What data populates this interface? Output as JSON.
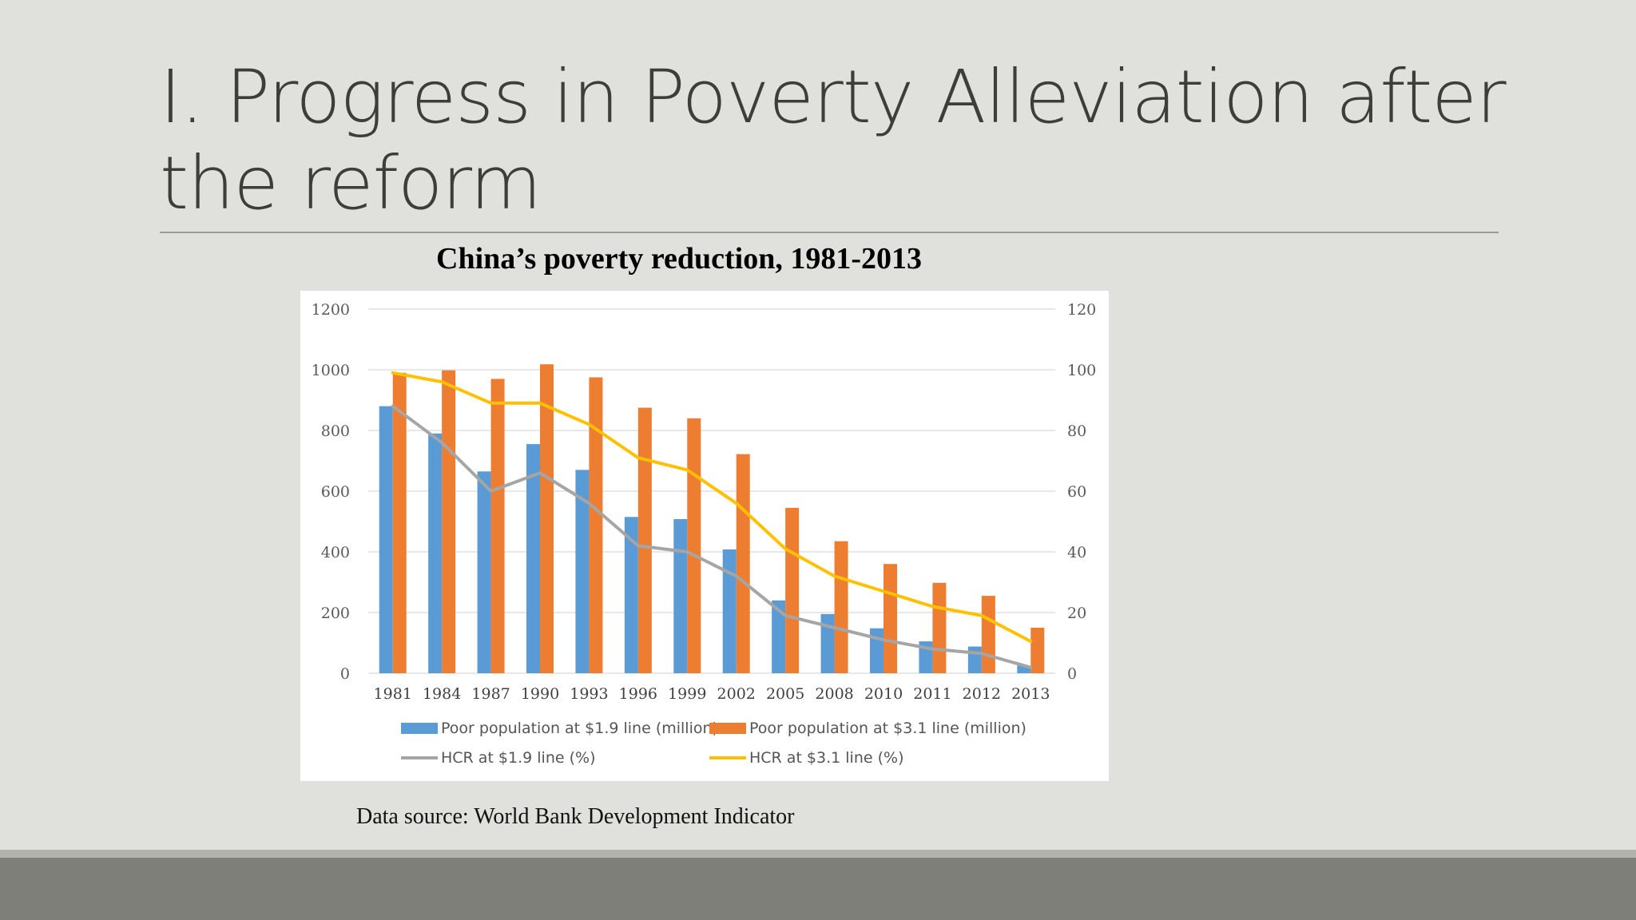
{
  "slide": {
    "title": "I. Progress in Poverty Alleviation after the reform",
    "chart_heading": "China’s poverty reduction, 1981-2013",
    "source": "Data source: World Bank Development Indicator"
  },
  "chart_data": {
    "type": "bar",
    "title": "China’s poverty reduction, 1981-2013",
    "categories": [
      "1981",
      "1984",
      "1987",
      "1990",
      "1993",
      "1996",
      "1999",
      "2002",
      "2005",
      "2008",
      "2010",
      "2011",
      "2012",
      "2013"
    ],
    "y_left": {
      "ylim": [
        0,
        1200
      ],
      "ticks": [
        0,
        200,
        400,
        600,
        800,
        1000,
        1200
      ]
    },
    "y_right": {
      "ylim": [
        0,
        120
      ],
      "ticks": [
        0,
        20,
        40,
        60,
        80,
        100,
        120
      ]
    },
    "grid": true,
    "legend_position": "bottom",
    "series": [
      {
        "name": "Poor population at $1.9 line (million)",
        "type": "bar",
        "axis": "left",
        "color": "#5b9bd5",
        "values": [
          880,
          790,
          665,
          755,
          670,
          515,
          508,
          408,
          240,
          195,
          148,
          105,
          88,
          25
        ]
      },
      {
        "name": "Poor population at $3.1 line (million)",
        "type": "bar",
        "axis": "left",
        "color": "#ed7d31",
        "values": [
          990,
          998,
          970,
          1018,
          975,
          875,
          840,
          722,
          545,
          435,
          360,
          298,
          255,
          150
        ]
      },
      {
        "name": "HCR at $1.9 line (%)",
        "type": "line",
        "axis": "right",
        "color": "#a5a5a5",
        "values": [
          88,
          76,
          60,
          66,
          56,
          42,
          40,
          32,
          19,
          15,
          11,
          8,
          6.5,
          1.9
        ]
      },
      {
        "name": "HCR at $3.1 line (%)",
        "type": "line",
        "axis": "right",
        "color": "#ffc000",
        "values": [
          99,
          96,
          89,
          89,
          82,
          71,
          67,
          56,
          41,
          32,
          27,
          22,
          19,
          10.5
        ]
      }
    ]
  }
}
